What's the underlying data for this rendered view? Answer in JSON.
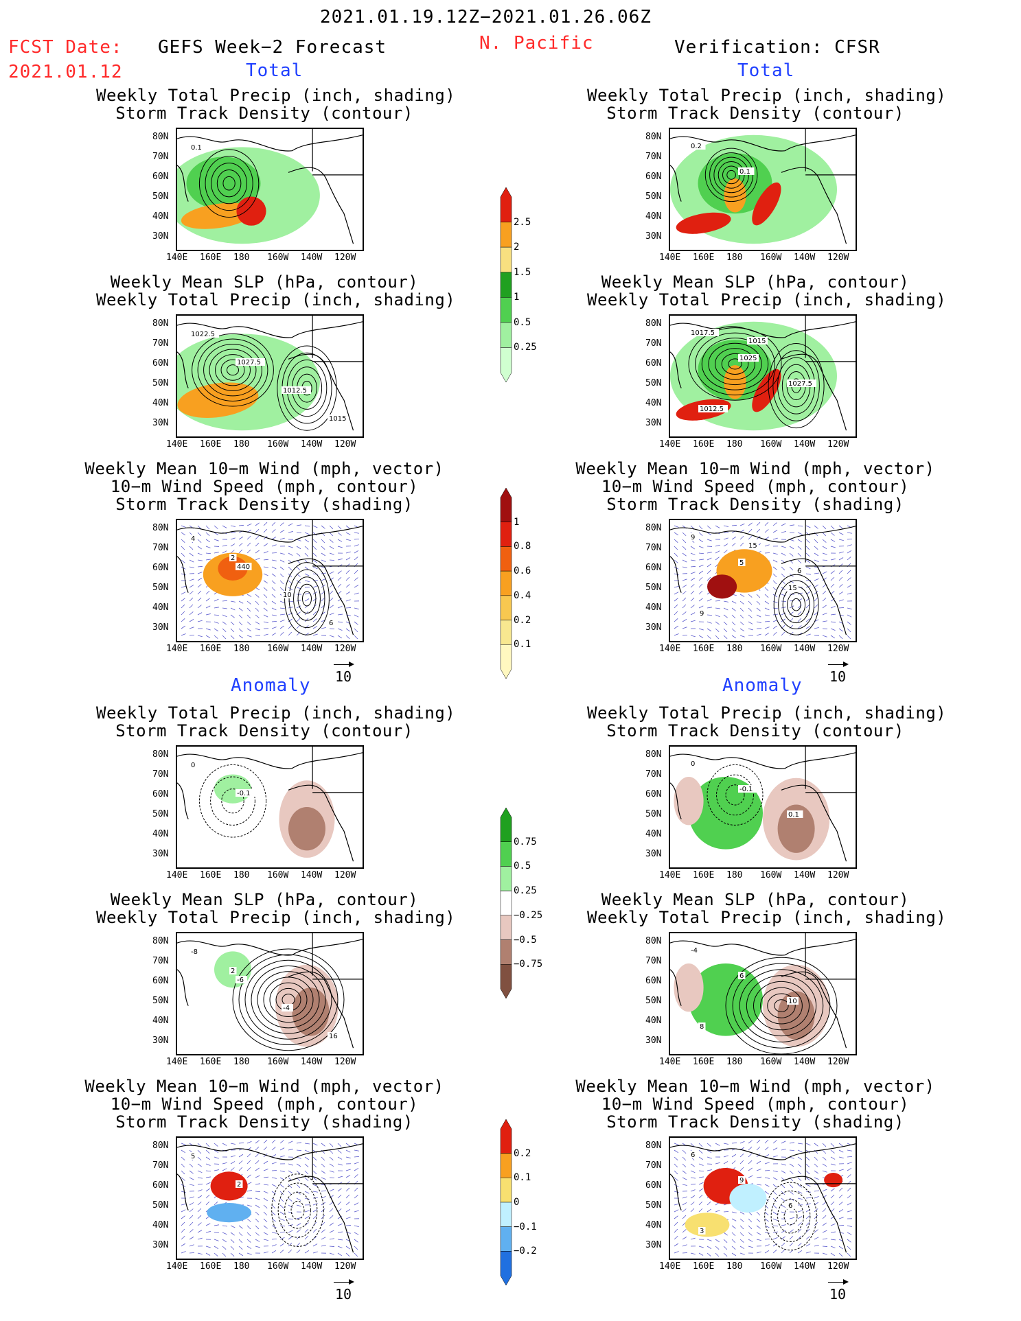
{
  "header": {
    "date_range": "2021.01.19.12Z−2021.01.26.06Z",
    "region": "N. Pacific",
    "fcst_label": "FCST Date:",
    "fcst_date": "2021.01.12",
    "left_title": "GEFS Week−2 Forecast",
    "right_title": "Verification: CFSR",
    "section_total": "Total",
    "section_anomaly": "Anomaly"
  },
  "panel_titles": {
    "precip_track": "Weekly Total Precip (inch, shading)\nStorm Track Density (contour)",
    "slp_precip": "Weekly Mean SLP (hPa, contour)\nWeekly Total Precip (inch, shading)",
    "wind_track": "Weekly Mean 10−m Wind (mph, vector)\n10−m Wind Speed (mph, contour)\nStorm Track Density (shading)"
  },
  "axes": {
    "lat_ticks": [
      "80N",
      "70N",
      "60N",
      "50N",
      "40N",
      "30N"
    ],
    "lon_ticks": [
      "140E",
      "160E",
      "180",
      "160W",
      "140W",
      "120W"
    ]
  },
  "vector_ref": "10",
  "colorbars": {
    "precip_total": {
      "labels": [
        "2.5",
        "2",
        "1.5",
        "1",
        "0.5",
        "0.25"
      ],
      "colors": [
        "#e02010",
        "#f8a020",
        "#f8e080",
        "#20a020",
        "#50d050",
        "#a0f0a0",
        "#d0ffd0"
      ]
    },
    "track_total": {
      "labels": [
        "1",
        "0.8",
        "0.6",
        "0.4",
        "0.2",
        "0.1"
      ],
      "colors": [
        "#a01010",
        "#e02010",
        "#f06010",
        "#f8a020",
        "#f8c850",
        "#f8e890",
        "#fff8c0"
      ]
    },
    "precip_anom": {
      "labels": [
        "0.75",
        "0.5",
        "0.25",
        "−0.25",
        "−0.5",
        "−0.75"
      ],
      "colors": [
        "#20a020",
        "#50d050",
        "#a0f0a0",
        "#ffffff",
        "#e8c8c0",
        "#b08070",
        "#805040"
      ]
    },
    "track_anom": {
      "labels": [
        "0.2",
        "0.1",
        "0",
        "−0.1",
        "−0.2"
      ],
      "colors": [
        "#e02010",
        "#f8a020",
        "#f8e070",
        "#c0f0ff",
        "#60b0f0",
        "#2070e0"
      ]
    }
  },
  "panel_labels": {
    "L1": [
      "0.1"
    ],
    "R1": [
      "0.2",
      "0.1"
    ],
    "L2": [
      "1022.5",
      "1027.5",
      "1012.5",
      "1015"
    ],
    "R2": [
      "1017.5",
      "1025",
      "1027.5",
      "1012.5",
      "1015"
    ],
    "L3": [
      "4",
      "440",
      "10",
      "6",
      "2"
    ],
    "R3": [
      "9",
      "5",
      "15",
      "9",
      "15",
      "6"
    ],
    "L4": [
      "0",
      "-0.1"
    ],
    "R4": [
      "0",
      "-0.1",
      "0.1"
    ],
    "L5": [
      "-8",
      "-6",
      "-4",
      "16",
      "2"
    ],
    "R5": [
      "-4",
      "6",
      "10",
      "8"
    ],
    "L6": [
      "5",
      "2"
    ],
    "R6": [
      "6",
      "9",
      "6",
      "3"
    ]
  }
}
